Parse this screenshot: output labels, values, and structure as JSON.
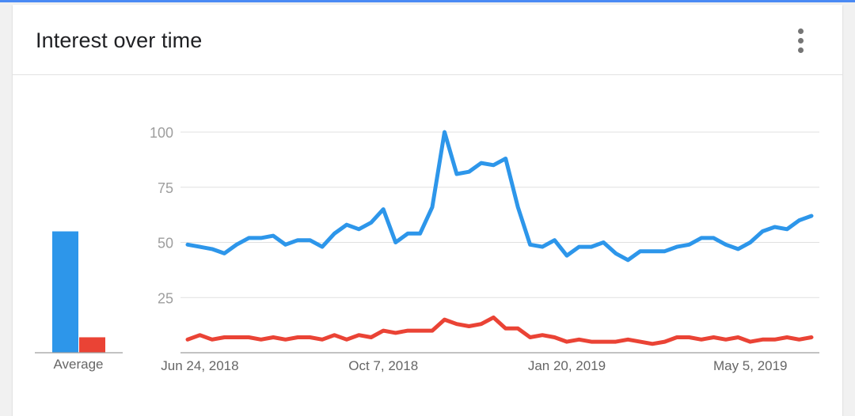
{
  "card": {
    "title": "Interest over time",
    "menu_icon": "more-vert-icon"
  },
  "colors": {
    "accent_bar": "#4a8af4",
    "series_1": "#2d96ea",
    "series_2": "#ea4335",
    "gridline": "#e0e0e0",
    "axis": "#9e9e9e"
  },
  "chart_data": {
    "type": "line",
    "title": "Interest over time",
    "xlabel": "",
    "ylabel": "",
    "ylim": [
      0,
      100
    ],
    "yticks": [
      25,
      50,
      75,
      100
    ],
    "grid": true,
    "x_tick_labels": [
      "Jun 24, 2018",
      "Oct 7, 2018",
      "Jan 20, 2019",
      "May 5, 2019"
    ],
    "x": [
      "2018-06-17",
      "2018-06-24",
      "2018-07-01",
      "2018-07-08",
      "2018-07-15",
      "2018-07-22",
      "2018-07-29",
      "2018-08-05",
      "2018-08-12",
      "2018-08-19",
      "2018-08-26",
      "2018-09-02",
      "2018-09-09",
      "2018-09-16",
      "2018-09-23",
      "2018-09-30",
      "2018-10-07",
      "2018-10-14",
      "2018-10-21",
      "2018-10-28",
      "2018-11-04",
      "2018-11-11",
      "2018-11-18",
      "2018-11-25",
      "2018-12-02",
      "2018-12-09",
      "2018-12-16",
      "2018-12-23",
      "2018-12-30",
      "2019-01-06",
      "2019-01-13",
      "2019-01-20",
      "2019-01-27",
      "2019-02-03",
      "2019-02-10",
      "2019-02-17",
      "2019-02-24",
      "2019-03-03",
      "2019-03-10",
      "2019-03-17",
      "2019-03-24",
      "2019-03-31",
      "2019-04-07",
      "2019-04-14",
      "2019-04-21",
      "2019-04-28",
      "2019-05-05",
      "2019-05-12",
      "2019-05-19",
      "2019-05-26",
      "2019-06-02",
      "2019-06-09"
    ],
    "series": [
      {
        "values": [
          49,
          48,
          47,
          45,
          49,
          52,
          52,
          53,
          49,
          51,
          51,
          48,
          54,
          58,
          56,
          59,
          65,
          50,
          54,
          54,
          66,
          100,
          81,
          82,
          86,
          85,
          88,
          66,
          49,
          48,
          51,
          44,
          48,
          48,
          50,
          45,
          42,
          46,
          46,
          46,
          48,
          49,
          52,
          52,
          49,
          47,
          50,
          55,
          57,
          56,
          60,
          62
        ]
      },
      {
        "values": [
          6,
          8,
          6,
          7,
          7,
          7,
          6,
          7,
          6,
          7,
          7,
          6,
          8,
          6,
          8,
          7,
          10,
          9,
          10,
          10,
          10,
          15,
          13,
          12,
          13,
          16,
          11,
          11,
          7,
          8,
          7,
          5,
          6,
          5,
          5,
          5,
          6,
          5,
          4,
          5,
          7,
          7,
          6,
          7,
          6,
          7,
          5,
          6,
          6,
          7,
          6,
          7
        ]
      }
    ],
    "average_bars": {
      "label": "Average",
      "values": [
        55,
        7
      ]
    }
  }
}
